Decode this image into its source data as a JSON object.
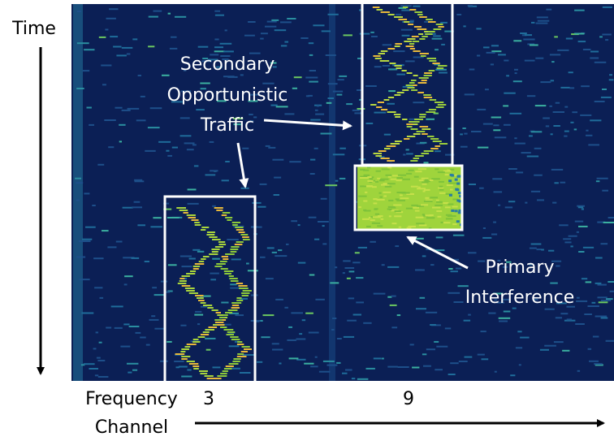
{
  "labels": {
    "time": "Time",
    "secondary": [
      "Secondary",
      "Opportunistic",
      "Traffic"
    ],
    "primary": [
      "Primary",
      "Interference"
    ],
    "x_axis": [
      "Frequency",
      "Channel"
    ],
    "channels": [
      "3",
      "9"
    ]
  }
}
